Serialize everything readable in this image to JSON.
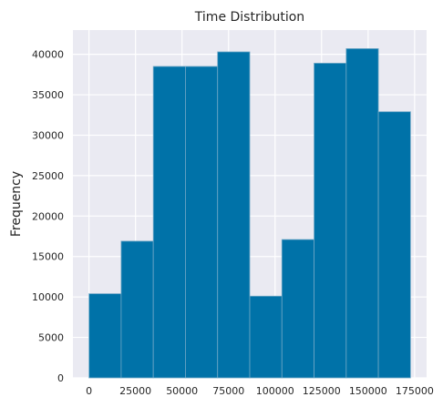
{
  "chart_data": {
    "type": "bar",
    "title": "Time Distribution",
    "xlabel": "",
    "ylabel": "Frequency",
    "bin_edges": [
      0,
      17280,
      34560,
      51840,
      69120,
      86400,
      103680,
      120960,
      138240,
      155520,
      172800
    ],
    "values": [
      10400,
      16900,
      38500,
      38500,
      40300,
      10100,
      17100,
      38900,
      40700,
      32900
    ],
    "xlim": [
      -8640,
      181440
    ],
    "ylim": [
      0,
      43000
    ],
    "x_ticks": [
      0,
      25000,
      50000,
      75000,
      100000,
      125000,
      150000,
      175000
    ],
    "x_tick_labels": [
      "0",
      "25000",
      "50000",
      "75000",
      "100000",
      "125000",
      "150000",
      "175000"
    ],
    "y_ticks": [
      0,
      5000,
      10000,
      15000,
      20000,
      25000,
      30000,
      35000,
      40000
    ],
    "y_tick_labels": [
      "0",
      "5000",
      "10000",
      "15000",
      "20000",
      "25000",
      "30000",
      "35000",
      "40000"
    ],
    "grid": true,
    "colors": {
      "bar": "#0072a8",
      "bar_edge": "#6fa7c6",
      "background": "#eaeaf2",
      "grid": "#ffffff"
    }
  }
}
